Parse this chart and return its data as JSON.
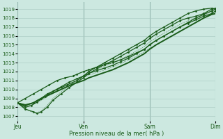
{
  "xlabel": "Pression niveau de la mer( hPa )",
  "background_color": "#cce8e0",
  "grid_color": "#a8c8c0",
  "line_color": "#1a5c1a",
  "ylim": [
    1006.5,
    1019.8
  ],
  "yticks": [
    1007,
    1008,
    1009,
    1010,
    1011,
    1012,
    1013,
    1014,
    1015,
    1016,
    1017,
    1018,
    1019
  ],
  "xtick_labels": [
    "Jeu",
    "Ven",
    "Sam",
    "Dim"
  ],
  "xtick_positions": [
    0.0,
    0.333,
    0.667,
    1.0
  ],
  "xlim": [
    0.0,
    1.0
  ],
  "lines": [
    {
      "x": [
        0.0,
        0.04,
        0.08,
        0.12,
        0.15,
        0.2,
        0.25,
        0.3,
        0.333,
        0.36,
        0.4,
        0.44,
        0.48,
        0.52,
        0.56,
        0.6,
        0.64,
        0.667,
        0.7,
        0.74,
        0.78,
        0.82,
        0.86,
        0.9,
        0.94,
        0.98,
        1.0
      ],
      "y": [
        1008.5,
        1008.3,
        1008.5,
        1009.0,
        1009.5,
        1010.0,
        1010.5,
        1011.0,
        1011.5,
        1012.0,
        1012.5,
        1013.0,
        1013.5,
        1014.0,
        1014.5,
        1015.0,
        1015.5,
        1016.0,
        1016.5,
        1017.0,
        1017.5,
        1018.0,
        1018.5,
        1018.8,
        1019.0,
        1019.1,
        1019.0
      ],
      "lw": 0.9,
      "ls": "-",
      "marker": "D",
      "ms": 1.5
    },
    {
      "x": [
        0.0,
        0.04,
        0.08,
        0.1,
        0.12,
        0.15,
        0.18,
        0.22,
        0.26,
        0.3,
        0.333,
        0.36,
        0.4,
        0.44,
        0.48,
        0.52,
        0.56,
        0.6,
        0.64,
        0.667,
        0.7,
        0.74,
        0.78,
        0.82,
        0.86,
        0.9,
        0.94,
        0.98,
        1.0
      ],
      "y": [
        1008.5,
        1007.8,
        1007.5,
        1007.3,
        1007.5,
        1008.0,
        1008.8,
        1009.5,
        1010.2,
        1010.8,
        1011.3,
        1011.8,
        1012.3,
        1012.8,
        1013.2,
        1013.7,
        1014.2,
        1014.7,
        1015.2,
        1015.7,
        1016.2,
        1016.7,
        1017.2,
        1017.7,
        1018.0,
        1018.2,
        1018.5,
        1019.0,
        1019.1
      ],
      "lw": 0.9,
      "ls": "-",
      "marker": "D",
      "ms": 1.5
    },
    {
      "x": [
        0.0,
        0.04,
        0.08,
        0.12,
        0.16,
        0.2,
        0.24,
        0.28,
        0.3,
        0.333,
        0.36,
        0.4,
        0.44,
        0.48,
        0.52,
        0.56,
        0.6,
        0.64,
        0.667,
        0.7,
        0.74,
        0.78,
        0.82,
        0.86,
        0.9,
        0.94,
        0.98,
        1.0
      ],
      "y": [
        1008.5,
        1009.0,
        1009.5,
        1010.0,
        1010.5,
        1011.0,
        1011.3,
        1011.5,
        1011.7,
        1012.0,
        1012.2,
        1012.5,
        1012.8,
        1013.0,
        1013.3,
        1013.7,
        1014.1,
        1014.5,
        1015.0,
        1015.5,
        1016.0,
        1016.5,
        1017.0,
        1017.4,
        1017.8,
        1018.2,
        1018.5,
        1018.8
      ],
      "lw": 0.9,
      "ls": "-",
      "marker": "D",
      "ms": 1.5
    },
    {
      "x": [
        0.0,
        0.04,
        0.07,
        0.1,
        0.14,
        0.18,
        0.22,
        0.26,
        0.3,
        0.333,
        0.36,
        0.4,
        0.44,
        0.48,
        0.52,
        0.56,
        0.6,
        0.64,
        0.667,
        0.7,
        0.74,
        0.78,
        0.82,
        0.86,
        0.9,
        0.94,
        0.98,
        1.0
      ],
      "y": [
        1008.5,
        1008.0,
        1008.2,
        1008.6,
        1009.2,
        1009.8,
        1010.3,
        1010.8,
        1011.2,
        1011.5,
        1011.8,
        1012.1,
        1012.4,
        1012.7,
        1013.1,
        1013.5,
        1014.0,
        1014.5,
        1015.0,
        1015.5,
        1016.0,
        1016.5,
        1017.0,
        1017.5,
        1018.0,
        1018.4,
        1018.8,
        1019.0
      ],
      "lw": 0.9,
      "ls": "-",
      "marker": "D",
      "ms": 1.5
    },
    {
      "x": [
        0.0,
        0.04,
        0.08,
        0.12,
        0.16,
        0.2,
        0.24,
        0.28,
        0.333,
        0.36,
        0.4,
        0.44,
        0.48,
        0.52,
        0.56,
        0.6,
        0.64,
        0.667,
        0.7,
        0.74,
        0.78,
        0.82,
        0.86,
        0.9,
        0.94,
        0.98,
        1.0
      ],
      "y": [
        1008.5,
        1008.2,
        1008.5,
        1009.0,
        1009.4,
        1009.8,
        1010.2,
        1010.6,
        1011.0,
        1011.3,
        1011.6,
        1011.9,
        1012.2,
        1012.6,
        1013.0,
        1013.5,
        1014.0,
        1014.5,
        1015.0,
        1015.5,
        1016.0,
        1016.5,
        1017.0,
        1017.5,
        1018.0,
        1018.4,
        1018.5
      ],
      "lw": 1.4,
      "ls": "-",
      "marker": null,
      "ms": 0
    }
  ],
  "thin_lines": [
    {
      "x": [
        0.0,
        0.04,
        0.08,
        0.12,
        0.16,
        0.2,
        0.24,
        0.28,
        0.3,
        0.333,
        0.36,
        0.4,
        0.44,
        0.48,
        0.52,
        0.56,
        0.6,
        0.64,
        0.667,
        0.7,
        0.74,
        0.78,
        0.82,
        0.86,
        0.9,
        0.94,
        0.98,
        1.0
      ],
      "y": [
        1008.5,
        1008.1,
        1008.3,
        1008.8,
        1009.3,
        1009.8,
        1010.3,
        1010.7,
        1011.0,
        1011.3,
        1011.6,
        1011.9,
        1012.2,
        1012.5,
        1012.9,
        1013.3,
        1013.7,
        1014.2,
        1014.6,
        1015.0,
        1015.5,
        1016.0,
        1016.5,
        1017.0,
        1017.5,
        1018.0,
        1018.5,
        1018.8
      ],
      "lw": 0.5,
      "ls": ":"
    },
    {
      "x": [
        0.0,
        0.04,
        0.07,
        0.1,
        0.12,
        0.15,
        0.18,
        0.22,
        0.26,
        0.3,
        0.333,
        0.36,
        0.4,
        0.44,
        0.48,
        0.52,
        0.56,
        0.6,
        0.64,
        0.667,
        0.7,
        0.74,
        0.78,
        0.82,
        0.86,
        0.9,
        0.94,
        0.98,
        1.0
      ],
      "y": [
        1008.5,
        1007.8,
        1007.5,
        1007.4,
        1007.6,
        1008.2,
        1009.0,
        1009.7,
        1010.4,
        1011.0,
        1011.4,
        1011.8,
        1012.2,
        1012.6,
        1013.0,
        1013.4,
        1013.8,
        1014.3,
        1014.8,
        1015.3,
        1015.8,
        1016.3,
        1016.8,
        1017.3,
        1017.7,
        1018.0,
        1018.3,
        1018.7,
        1019.0
      ],
      "lw": 0.5,
      "ls": ":"
    }
  ]
}
